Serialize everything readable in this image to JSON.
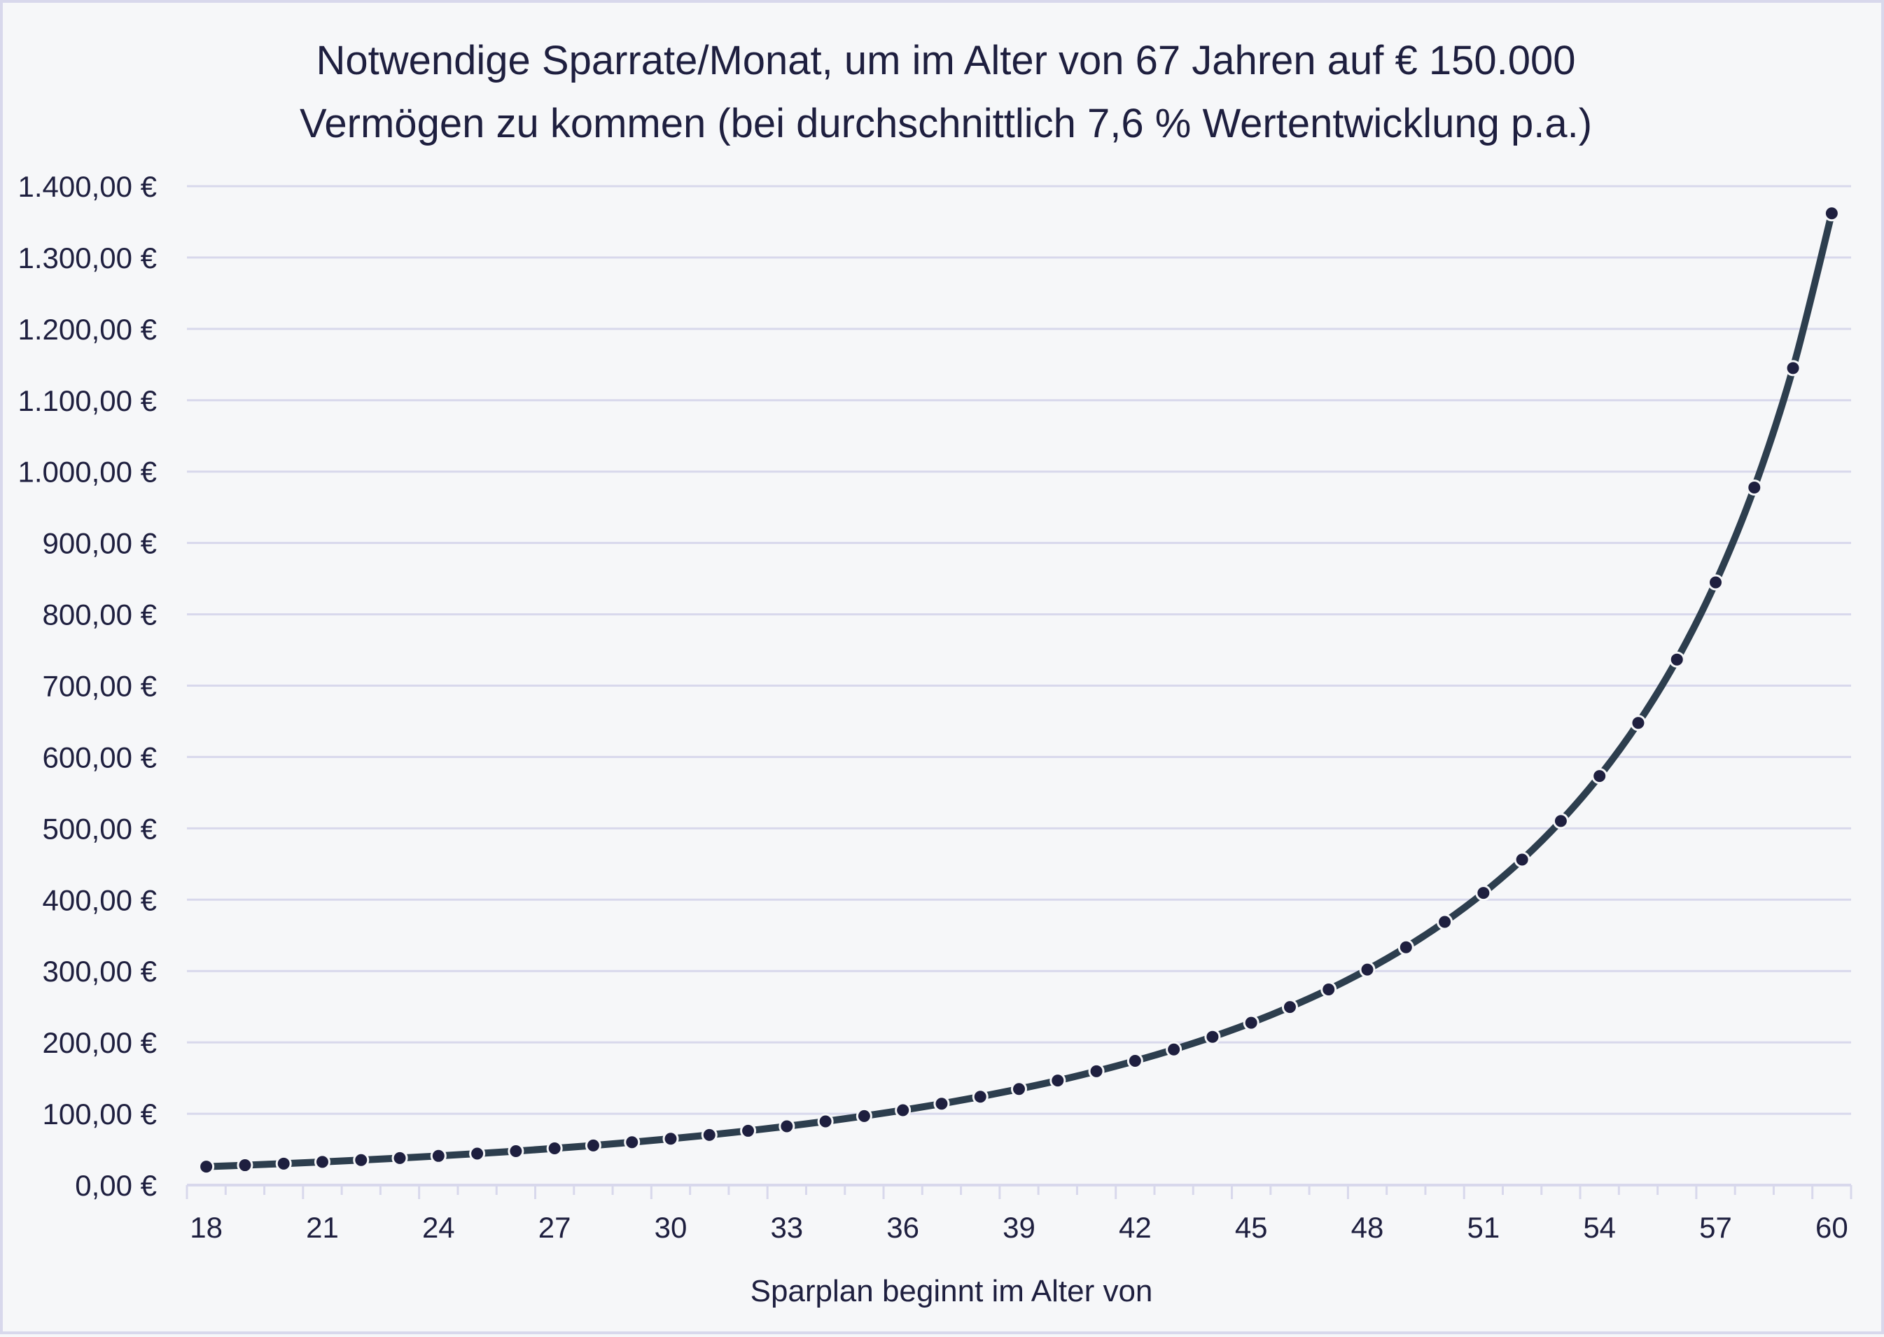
{
  "chart_data": {
    "type": "line",
    "title": [
      "Notwendige Sparrate/Monat, um im Alter von 67 Jahren auf € 150.000",
      "Vermögen zu kommen (bei durchschnittlich 7,6 % Wertentwicklung p.a.)"
    ],
    "xlabel": "Sparplan beginnt im Alter von",
    "ylabel": "",
    "ylim": [
      0,
      1400
    ],
    "yticks": [
      0,
      100,
      200,
      300,
      400,
      500,
      600,
      700,
      800,
      900,
      1000,
      1100,
      1200,
      1300,
      1400
    ],
    "ytick_labels": [
      "0,00 €",
      "100,00 €",
      "200,00 €",
      "300,00 €",
      "400,00 €",
      "500,00 €",
      "600,00 €",
      "700,00 €",
      "800,00 €",
      "900,00 €",
      "1.000,00 €",
      "1.100,00 €",
      "1.200,00 €",
      "1.300,00 €",
      "1.400,00 €"
    ],
    "x": [
      18,
      19,
      20,
      21,
      22,
      23,
      24,
      25,
      26,
      27,
      28,
      29,
      30,
      31,
      32,
      33,
      34,
      35,
      36,
      37,
      38,
      39,
      40,
      41,
      42,
      43,
      44,
      45,
      46,
      47,
      48,
      49,
      50,
      51,
      52,
      53,
      54,
      55,
      56,
      57,
      58,
      59,
      60
    ],
    "xtick_labels": [
      "18",
      "21",
      "24",
      "27",
      "30",
      "33",
      "36",
      "39",
      "42",
      "45",
      "48",
      "51",
      "54",
      "57",
      "60"
    ],
    "grid": true,
    "legend": "none",
    "series": [
      {
        "name": "Sparrate/Monat",
        "values": [
          25.9,
          27.9,
          30.1,
          32.5,
          35.1,
          37.9,
          40.9,
          44.1,
          47.6,
          51.5,
          55.6,
          60.1,
          65.0,
          70.3,
          76.1,
          82.4,
          89.3,
          96.8,
          105.0,
          114.0,
          123.9,
          134.7,
          146.5,
          159.6,
          174.1,
          190.1,
          207.8,
          227.5,
          249.6,
          274.2,
          302.0,
          333.3,
          368.9,
          409.5,
          456.2,
          510.3,
          573.3,
          647.8,
          736.6,
          844.7,
          977.7,
          1145.1,
          1362.0
        ],
        "line_color": "#2d3e4e",
        "marker_color": "#1e1f3f"
      }
    ],
    "colors": {
      "grid": "#d8d8ec",
      "background": "#f6f7f9",
      "text": "#1e1f3f"
    }
  }
}
